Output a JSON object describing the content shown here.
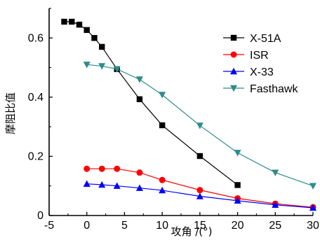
{
  "chart_data": {
    "type": "line",
    "title": "",
    "xlabel": "攻角 /(°)",
    "ylabel": "摩阻比值",
    "xlim": [
      -5,
      30
    ],
    "ylim": [
      0,
      0.7
    ],
    "xticks": [
      "-5",
      "0",
      "5",
      "10",
      "15",
      "20",
      "25",
      "30"
    ],
    "yticks": [
      "0",
      "0.2",
      "0.4",
      "0.6"
    ],
    "legend_position": "top-right",
    "grid": false,
    "series": [
      {
        "name": "X-51A",
        "color": "#000000",
        "marker": "square",
        "x": [
          -3,
          -2,
          -1,
          0,
          1,
          2,
          4,
          7,
          10,
          15,
          20
        ],
        "y": [
          0.655,
          0.655,
          0.645,
          0.627,
          0.6,
          0.57,
          0.495,
          0.393,
          0.305,
          0.201,
          0.103
        ]
      },
      {
        "name": "ISR",
        "color": "#ff0000",
        "marker": "circle",
        "x": [
          0,
          2,
          4,
          7,
          10,
          15,
          20,
          25,
          30
        ],
        "y": [
          0.158,
          0.158,
          0.158,
          0.145,
          0.12,
          0.086,
          0.058,
          0.04,
          0.028
        ]
      },
      {
        "name": "X-33",
        "color": "#0000ff",
        "marker": "triangle-up",
        "x": [
          0,
          2,
          4,
          7,
          10,
          15,
          20,
          25,
          30
        ],
        "y": [
          0.107,
          0.104,
          0.1,
          0.093,
          0.085,
          0.065,
          0.05,
          0.036,
          0.026
        ]
      },
      {
        "name": "Fasthawk",
        "color": "#2e8b8b",
        "marker": "triangle-down",
        "x": [
          0,
          2,
          4,
          7,
          10,
          15,
          20,
          25,
          30
        ],
        "y": [
          0.51,
          0.505,
          0.495,
          0.46,
          0.408,
          0.304,
          0.212,
          0.145,
          0.1
        ]
      }
    ]
  }
}
